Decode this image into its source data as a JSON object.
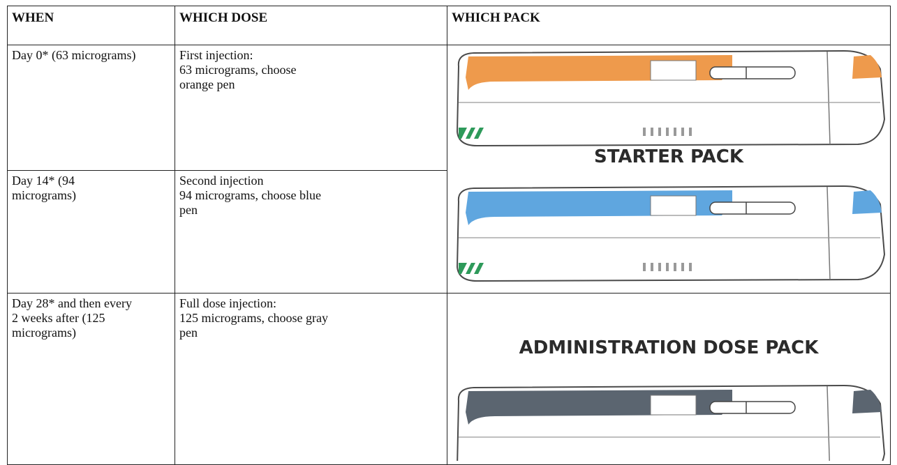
{
  "table": {
    "header": [
      "WHEN",
      "WHICH DOSE",
      "WHICH PACK"
    ],
    "rows": [
      {
        "when": "Day 0* (63 micrograms)",
        "dose": [
          "First injection:",
          "63 micrograms, choose orange pen"
        ]
      },
      {
        "when": "Day 14* (94 micrograms)",
        "dose": [
          "Second injection",
          "94 micrograms, choose blue pen"
        ]
      },
      {
        "when": "Day 28* and then every 2 weeks after (125 micrograms)",
        "dose": [
          "Full dose injection:",
          "125 micrograms, choose gray pen"
        ]
      }
    ],
    "packs": [
      "STARTER PACK",
      "ADMINISTRATION DOSE PACK"
    ]
  }
}
